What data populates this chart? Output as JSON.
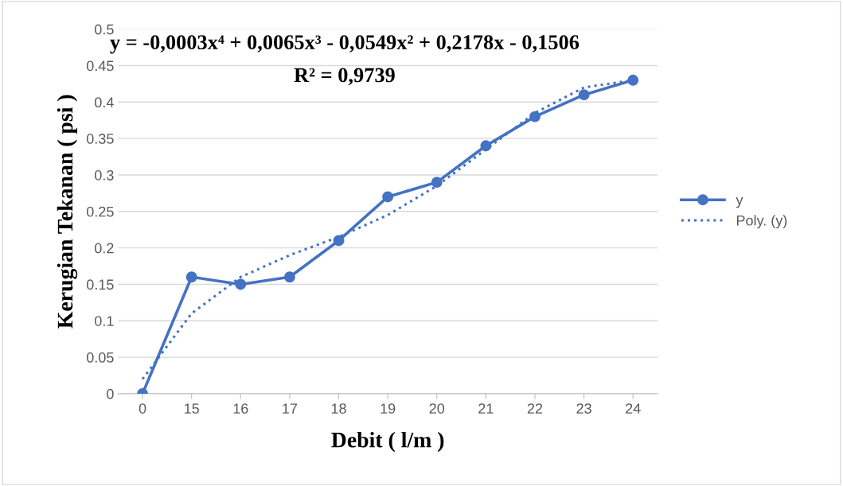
{
  "chart_data": {
    "type": "line",
    "xlabel": "Debit ( l/m )",
    "ylabel": "Kerugian Tekanan ( psi )",
    "categories": [
      "0",
      "15",
      "16",
      "17",
      "18",
      "19",
      "20",
      "21",
      "22",
      "23",
      "24"
    ],
    "series": [
      {
        "name": "y",
        "color": "#4472c4",
        "marker": "circle",
        "line_style": "solid",
        "values": [
          0,
          0.16,
          0.15,
          0.16,
          0.21,
          0.27,
          0.29,
          0.34,
          0.38,
          0.41,
          0.43
        ]
      },
      {
        "name": "Poly. (y)",
        "color": "#4472c4",
        "marker": "none",
        "line_style": "dotted",
        "values": [
          0.02,
          0.11,
          0.16,
          0.19,
          0.215,
          0.245,
          0.285,
          0.335,
          0.385,
          0.42,
          0.43
        ]
      }
    ],
    "ylim": [
      0,
      0.5
    ],
    "yticks": [
      0,
      0.05,
      0.1,
      0.15,
      0.2,
      0.25,
      0.3,
      0.35,
      0.4,
      0.45,
      0.5
    ],
    "grid": "y",
    "legend": "right",
    "annotations": [
      "y = -0,0003x⁴ + 0,0065x³ - 0,0549x² + 0,2178x - 0,1506",
      "R² = 0,9739"
    ]
  }
}
